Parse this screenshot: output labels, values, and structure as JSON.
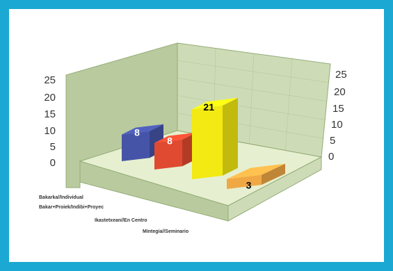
{
  "colors": {
    "frame": "#1ba8d2",
    "wall": "#cddcb6",
    "wall_dark": "#b9cb9e",
    "floor": "#e6f0d0",
    "edge": "#95ab78"
  },
  "chart_data": {
    "type": "bar",
    "title": "",
    "xlabel": "",
    "ylabel": "",
    "ylim": [
      0,
      25
    ],
    "y_ticks": [
      "0",
      "5",
      "10",
      "15",
      "20",
      "25"
    ],
    "categories": [
      "Bakarka//Individual",
      "Bakar+Proiek/Indibi+Proyec",
      "Ikastetxean//En Centro",
      "Mintegia//Seminario"
    ],
    "values": [
      8,
      8,
      21,
      3
    ],
    "value_labels": [
      "8",
      "8",
      "21",
      "3"
    ],
    "bar_colors": [
      "#4654a8",
      "#e04a30",
      "#f2ea12",
      "#f0a845"
    ],
    "grid": true,
    "legend": "none",
    "three_d": true
  }
}
